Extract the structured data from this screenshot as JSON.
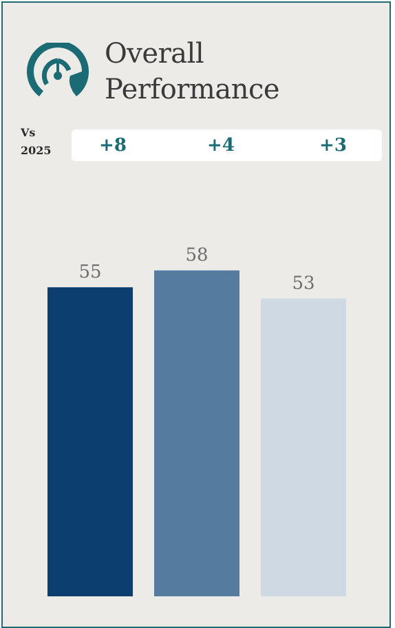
{
  "title_line1": "Overall",
  "title_line2": "Performance",
  "comparison": {
    "label_line1": "Vs",
    "label_line2": "2025",
    "deltas": [
      "+8",
      "+4",
      "+3"
    ]
  },
  "icon": "speedometer-gauge-icon",
  "colors": {
    "accent": "#1a6b74",
    "border": "#1f6a73",
    "background": "#ecebe7",
    "bars": [
      "#0c3e70",
      "#557b9f",
      "#cfd9e4"
    ]
  },
  "chart_data": {
    "type": "bar",
    "categories": [
      "",
      "",
      ""
    ],
    "values": [
      55,
      58,
      53
    ],
    "data_labels": [
      "55",
      "58",
      "53"
    ],
    "ylim": [
      0,
      100
    ],
    "grid": false,
    "legend": "none"
  }
}
